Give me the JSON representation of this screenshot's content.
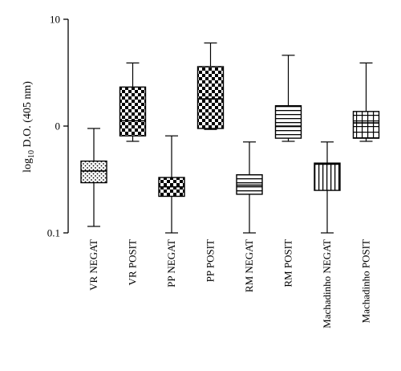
{
  "chart_data": {
    "type": "boxplot",
    "title": "",
    "ylabel": {
      "prefix": "log",
      "subscript": "10",
      "suffix": " D.O. (405 nm)"
    },
    "yscale": "log",
    "ylim": [
      0.1,
      10
    ],
    "yticks": [
      {
        "value": 10,
        "label": "10"
      },
      {
        "value": 1,
        "label": "0"
      },
      {
        "value": 0.1,
        "label": "0.1"
      }
    ],
    "categories": [
      "VR NEGAT",
      "VR POSIT",
      "PP NEGAT",
      "PP POSIT",
      "RM NEGAT",
      "RM POSIT",
      "Machadinho NEGAT",
      "Machadinho POSIT"
    ],
    "boxes": [
      {
        "name": "VR NEGAT",
        "pattern": "dots",
        "min": 0.115,
        "q1": 0.295,
        "median": 0.38,
        "q3": 0.47,
        "max": 0.95
      },
      {
        "name": "VR POSIT",
        "pattern": "checker",
        "min": 0.72,
        "q1": 0.81,
        "median": 1.12,
        "q3": 2.32,
        "max": 3.9
      },
      {
        "name": "PP NEGAT",
        "pattern": "checker",
        "min": 0.1,
        "q1": 0.22,
        "median": 0.27,
        "q3": 0.33,
        "max": 0.81
      },
      {
        "name": "PP POSIT",
        "pattern": "checker",
        "min": 0.93,
        "q1": 0.95,
        "median": 1.8,
        "q3": 3.6,
        "max": 6.0
      },
      {
        "name": "RM NEGAT",
        "pattern": "hlines",
        "min": 0.1,
        "q1": 0.23,
        "median": 0.28,
        "q3": 0.35,
        "max": 0.71
      },
      {
        "name": "RM POSIT",
        "pattern": "hlines",
        "min": 0.72,
        "q1": 0.77,
        "median": 1.0,
        "q3": 1.55,
        "max": 4.6
      },
      {
        "name": "Machadinho NEGAT",
        "pattern": "vlines",
        "min": 0.1,
        "q1": 0.25,
        "median": 0.44,
        "q3": 0.45,
        "max": 0.71
      },
      {
        "name": "Machadinho POSIT",
        "pattern": "vhlines",
        "min": 0.72,
        "q1": 0.77,
        "median": 1.07,
        "q3": 1.37,
        "max": 3.9
      }
    ],
    "grid": false,
    "legend": "none"
  }
}
